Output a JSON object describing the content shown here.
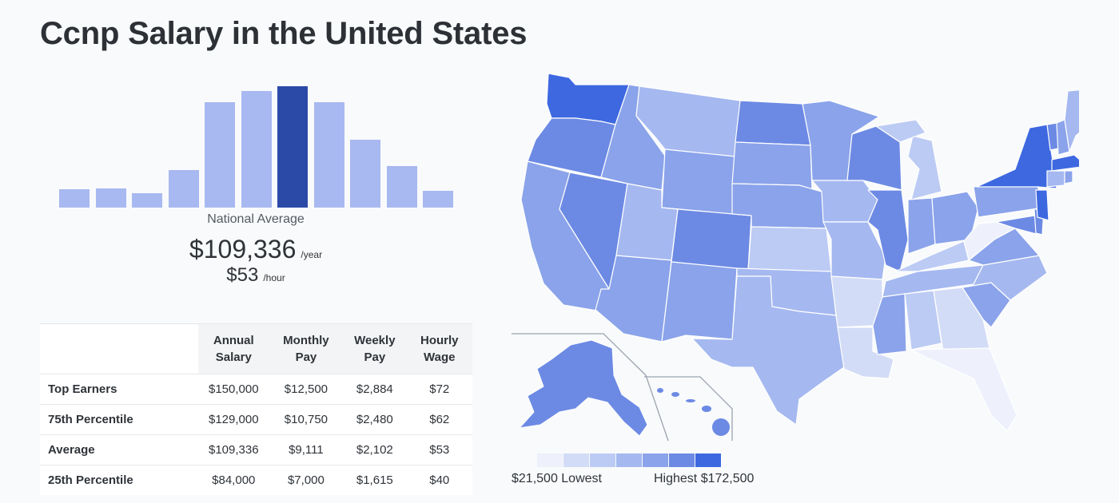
{
  "page": {
    "title": "Ccnp Salary in the United States"
  },
  "histogram": {
    "bar_levels": [
      0.15,
      0.16,
      0.12,
      0.31,
      0.87,
      0.96,
      1.0,
      0.87,
      0.56,
      0.34,
      0.14
    ],
    "highlight_index": 6,
    "color": "#a8b8f0",
    "highlight_color": "#2b4aa8"
  },
  "summary": {
    "label": "National Average",
    "annual": "$109,336",
    "annual_unit": "/year",
    "hourly": "$53",
    "hourly_unit": "/hour"
  },
  "table": {
    "headers": [
      "",
      "Annual Salary",
      "Monthly Pay",
      "Weekly Pay",
      "Hourly Wage"
    ],
    "rows": [
      [
        "Top Earners",
        "$150,000",
        "$12,500",
        "$2,884",
        "$72"
      ],
      [
        "75th Percentile",
        "$129,000",
        "$10,750",
        "$2,480",
        "$62"
      ],
      [
        "Average",
        "$109,336",
        "$9,111",
        "$2,102",
        "$53"
      ],
      [
        "25th Percentile",
        "$84,000",
        "$7,000",
        "$1,615",
        "$40"
      ]
    ]
  },
  "map": {
    "colors": {
      "c1": "#eef1fc",
      "c2": "#d3dcf6",
      "c3": "#bccbf4",
      "c4": "#a5b8f0",
      "c5": "#8aa3ea",
      "c6": "#6c8ae4",
      "c7": "#3d68e0"
    },
    "legend": {
      "swatches": [
        "#eef1fc",
        "#d3dcf6",
        "#bccbf4",
        "#a5b8f0",
        "#8aa3ea",
        "#6c8ae4",
        "#3d68e0"
      ],
      "low_label": "$21,500 Lowest",
      "high_label": "Highest $172,500"
    }
  }
}
